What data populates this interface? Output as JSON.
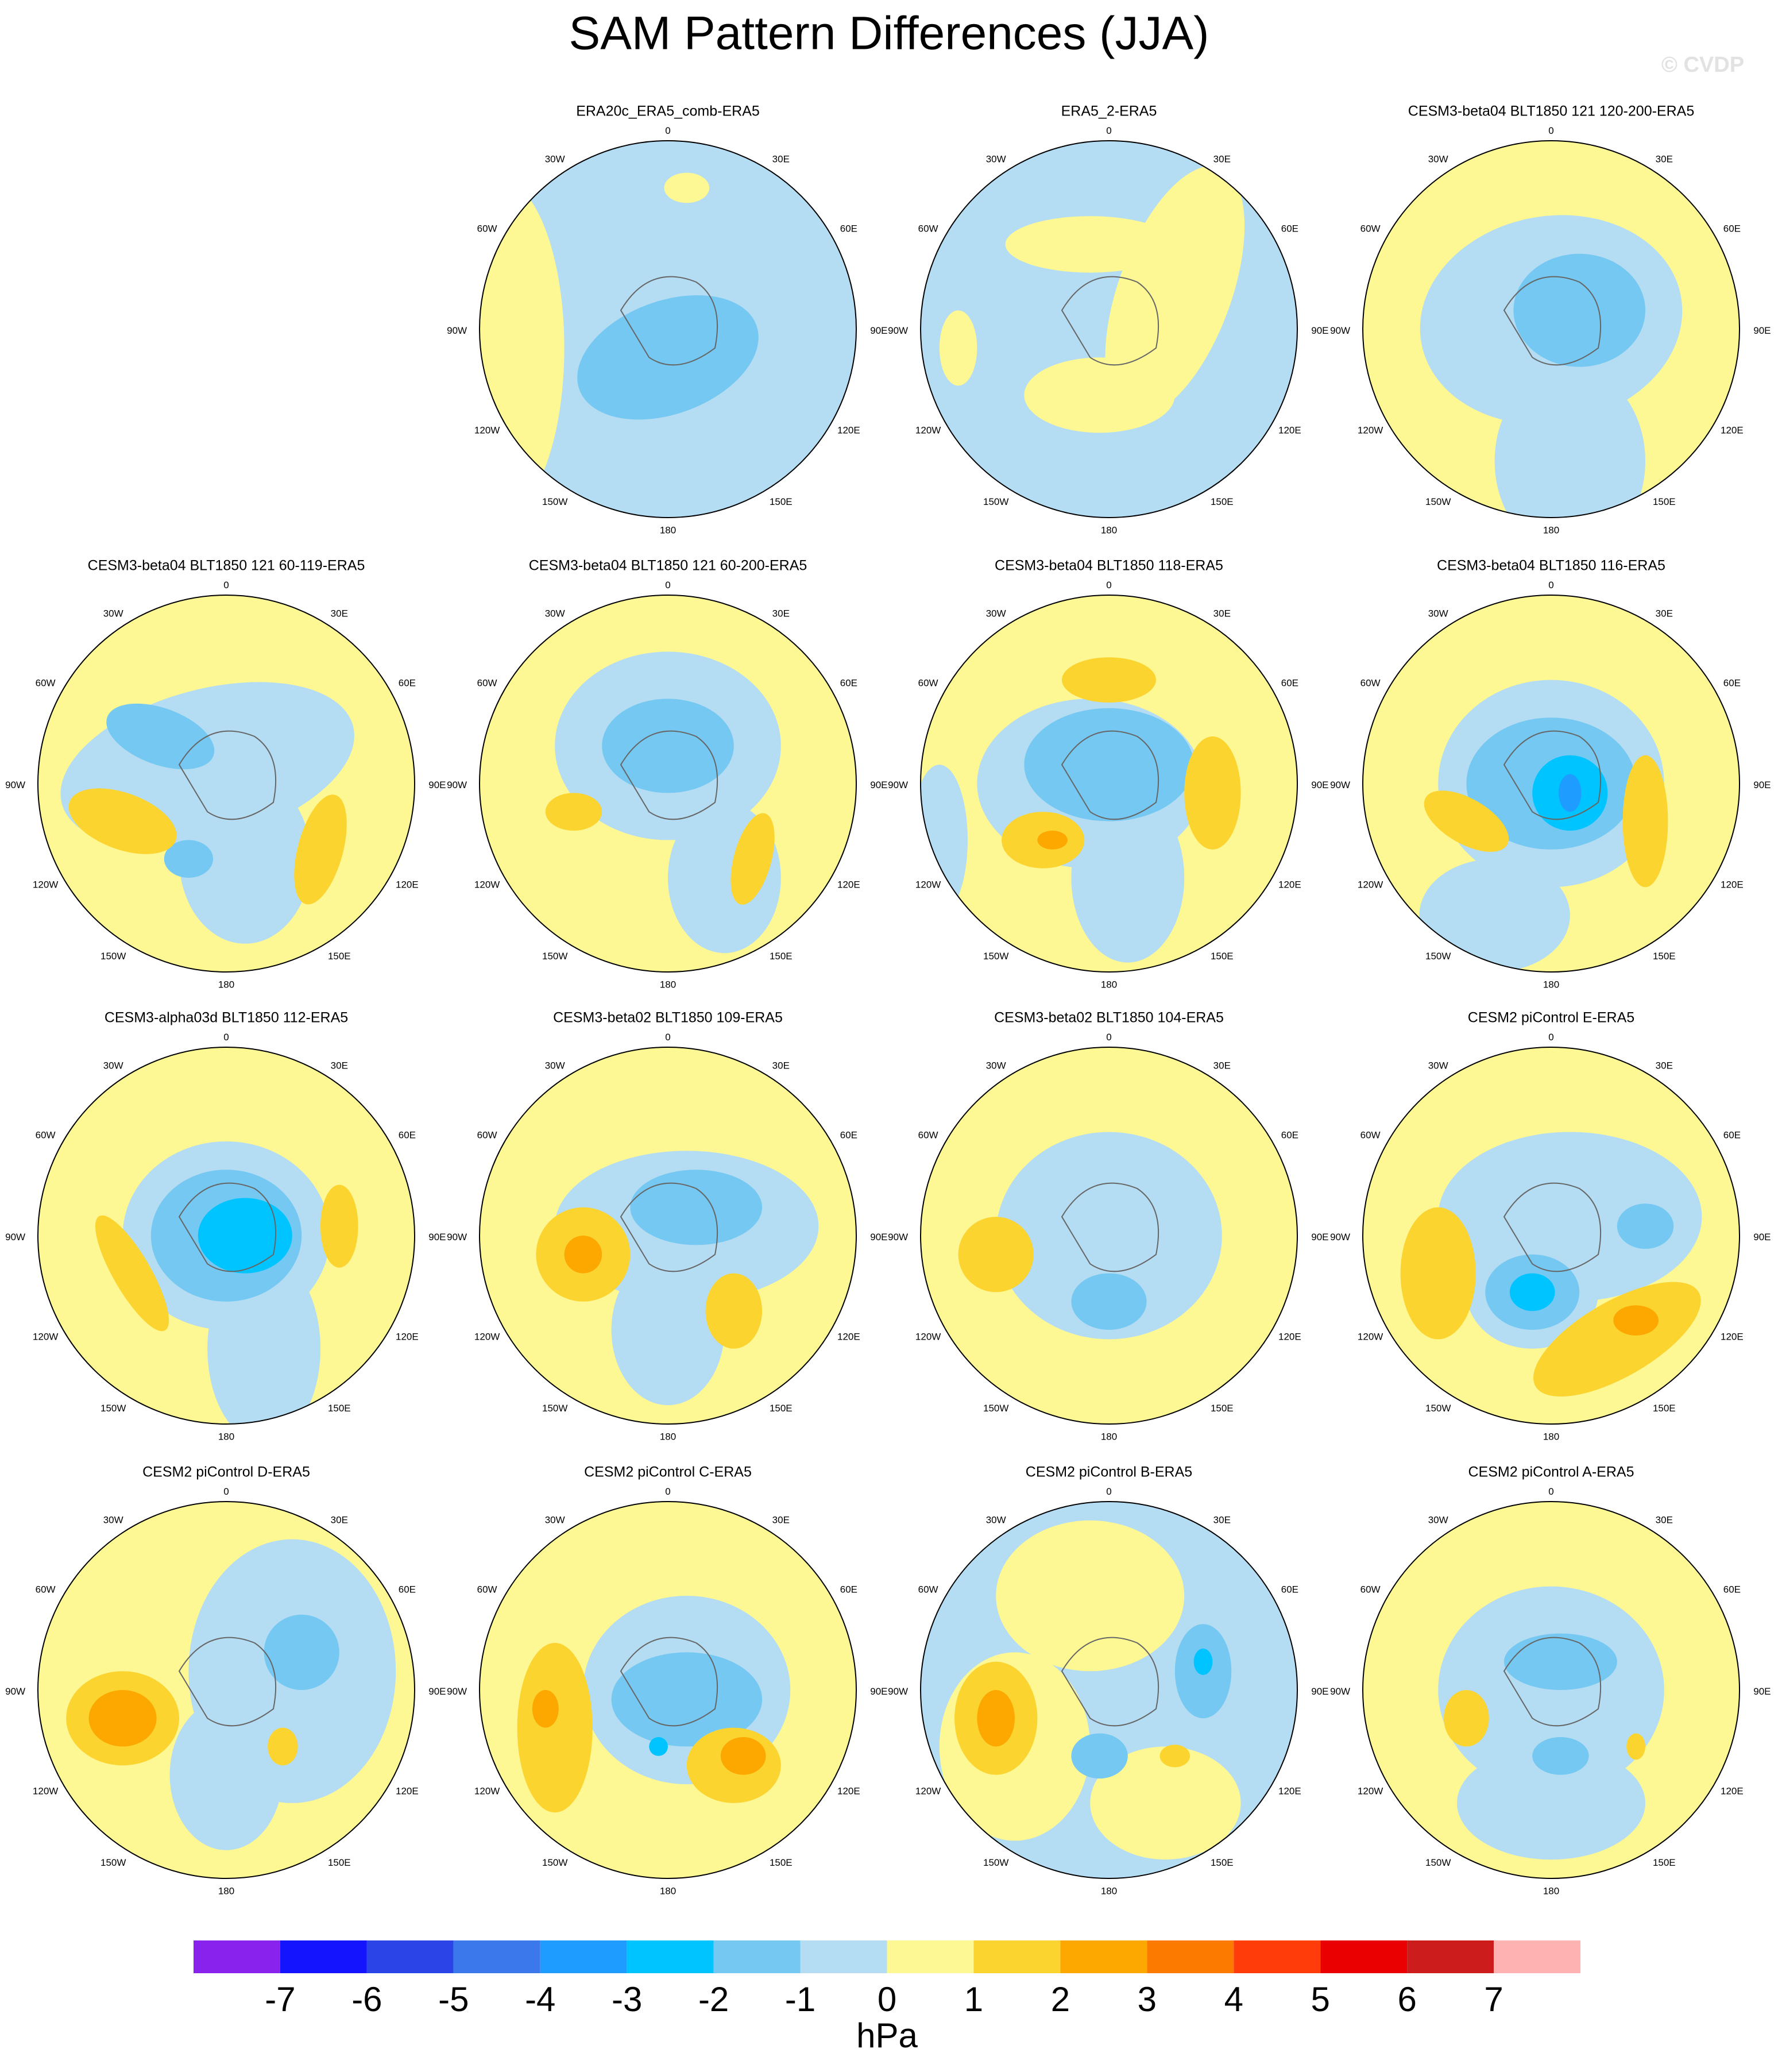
{
  "title": "SAM Pattern Differences (JJA)",
  "watermark": "© CVDP",
  "panels": [
    {
      "title": "ERA20c_ERA5_comb-ERA5"
    },
    {
      "title": "ERA5_2-ERA5"
    },
    {
      "title": "CESM3-beta04 BLT1850 121 120-200-ERA5"
    },
    {
      "title": "CESM3-beta04 BLT1850 121 60-119-ERA5"
    },
    {
      "title": "CESM3-beta04 BLT1850 121 60-200-ERA5"
    },
    {
      "title": "CESM3-beta04 BLT1850 118-ERA5"
    },
    {
      "title": "CESM3-beta04 BLT1850 116-ERA5"
    },
    {
      "title": "CESM3-alpha03d BLT1850 112-ERA5"
    },
    {
      "title": "CESM3-beta02 BLT1850 109-ERA5"
    },
    {
      "title": "CESM3-beta02 BLT1850 104-ERA5"
    },
    {
      "title": "CESM2 piControl E-ERA5"
    },
    {
      "title": "CESM2 piControl D-ERA5"
    },
    {
      "title": "CESM2 piControl C-ERA5"
    },
    {
      "title": "CESM2 piControl B-ERA5"
    },
    {
      "title": "CESM2 piControl A-ERA5"
    }
  ],
  "longitude_labels": [
    "0",
    "30W",
    "30E",
    "60W",
    "60E",
    "90W",
    "90E",
    "120W",
    "120E",
    "150W",
    "150E",
    "180"
  ],
  "colorbar": {
    "levels": [
      -7,
      -6,
      -5,
      -4,
      -3,
      -2,
      -1,
      0,
      1,
      2,
      3,
      4,
      5,
      6,
      7
    ],
    "colors": [
      "#8a22ee",
      "#1414ff",
      "#2b44e6",
      "#3a78ec",
      "#1e9cff",
      "#00c4ff",
      "#74c8f2",
      "#b4dcf2",
      "#fdf794",
      "#fcd430",
      "#fca800",
      "#fd7a00",
      "#ff3c0a",
      "#ea0000",
      "#cc1c1c",
      "#ffb2b2"
    ],
    "unit": "hPa"
  }
}
